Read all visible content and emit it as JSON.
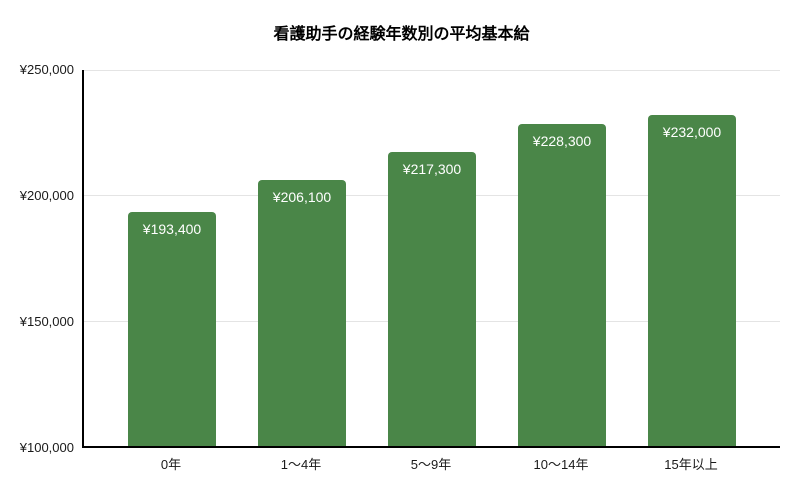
{
  "colors": {
    "bar": "#4a8648",
    "axis": "#000000",
    "gridline": "#e4e4e4",
    "bar_label_text": "#ffffff",
    "tick_text": "#1a1a1a",
    "background": "#ffffff"
  },
  "chart_data": {
    "type": "bar",
    "title": "看護助手の経験年数別の平均基本給",
    "categories": [
      "0年",
      "1〜4年",
      "5〜9年",
      "10〜14年",
      "15年以上"
    ],
    "values": [
      193400,
      206100,
      217300,
      228300,
      232000
    ],
    "value_labels": [
      "¥193,400",
      "¥206,100",
      "¥217,300",
      "¥228,300",
      "¥232,000"
    ],
    "xlabel": "",
    "ylabel": "",
    "ylim": [
      100000,
      250000
    ],
    "yticks": [
      100000,
      150000,
      200000,
      250000
    ],
    "ytick_labels": [
      "¥100,000",
      "¥150,000",
      "¥200,000",
      "¥250,000"
    ],
    "grid": true,
    "legend": false,
    "bar_label_position": "inside-top"
  }
}
